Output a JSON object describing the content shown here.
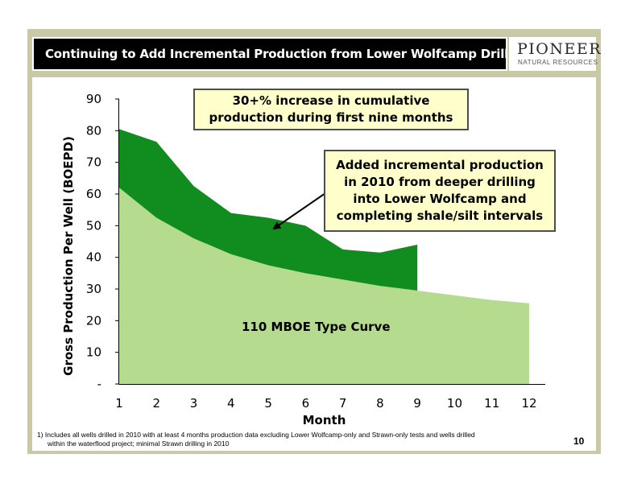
{
  "slide": {
    "title": "Continuing to Add Incremental Production from Lower Wolfcamp Drilling",
    "title_footnote_mark": "1",
    "logo_name": "PIONEER",
    "logo_sub": "NATURAL RESOURCES",
    "callout_top": [
      "30+% increase in cumulative",
      "production during first nine months"
    ],
    "callout_right": [
      "Added incremental production",
      "in 2010 from deeper drilling",
      "into Lower Wolfcamp and",
      "completing shale/silt intervals"
    ],
    "type_curve_label": "110 MBOE Type Curve",
    "footnote": [
      "1)  Includes all wells drilled in 2010 with at least 4 months production data excluding Lower Wolfcamp-only and Strawn-only tests and wells drilled",
      "within the waterflood project; minimal Strawn drilling in 2010"
    ],
    "page_number": "10"
  },
  "colors": {
    "frame": "#c9c9a7",
    "type_curve_fill": "#b5dc8e",
    "incremental_fill": "#118c1e",
    "callout_fill": "#ffffcc"
  },
  "chart_data": {
    "type": "area",
    "xlabel": "Month",
    "ylabel": "Gross Production Per Well (BOEPD)",
    "x": [
      1,
      2,
      3,
      4,
      5,
      6,
      7,
      8,
      9,
      10,
      11,
      12
    ],
    "x_tick_labels": [
      "1",
      "2",
      "3",
      "4",
      "5",
      "6",
      "7",
      "8",
      "9",
      "10",
      "11",
      "12"
    ],
    "y_tick_labels": [
      "-",
      "10",
      "20",
      "30",
      "40",
      "50",
      "60",
      "70",
      "80",
      "90"
    ],
    "ylim": [
      0,
      90
    ],
    "grid": false,
    "series": [
      {
        "name": "110 MBOE Type Curve",
        "x": [
          1,
          2,
          3,
          4,
          5,
          6,
          7,
          8,
          9,
          10,
          11,
          12
        ],
        "values": [
          62,
          52.5,
          46,
          41,
          37.5,
          35,
          33,
          31,
          29.5,
          28,
          26.5,
          25.5
        ]
      },
      {
        "name": "",
        "x": [
          1,
          2,
          3,
          4,
          5,
          6,
          7,
          8,
          9
        ],
        "values": [
          80.5,
          76.5,
          62.5,
          54,
          52.5,
          50,
          42.5,
          41.5,
          44
        ]
      }
    ]
  }
}
